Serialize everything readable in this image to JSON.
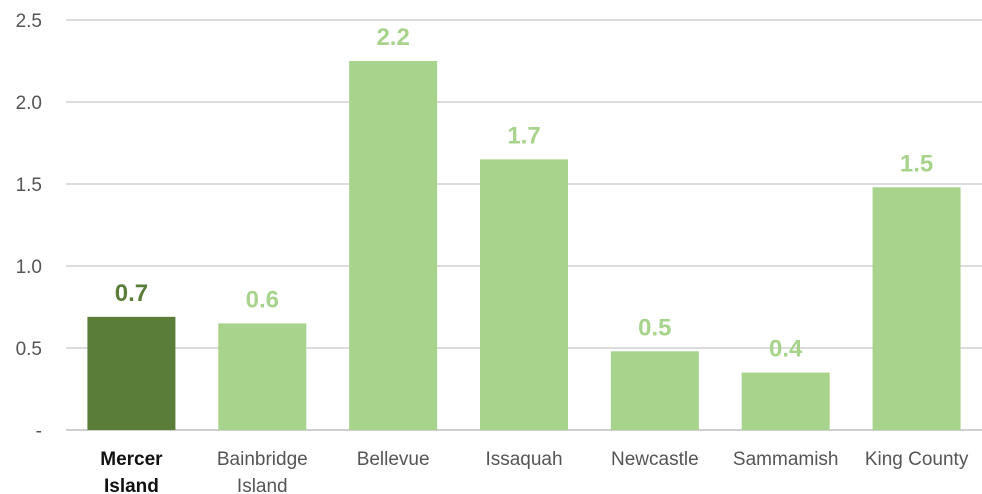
{
  "chart_data": {
    "type": "bar",
    "title": "",
    "xlabel": "",
    "ylabel": "",
    "ylim": [
      0,
      2.5
    ],
    "yticks": [
      0,
      0.5,
      1.0,
      1.5,
      2.0,
      2.5
    ],
    "ytick_labels": [
      "-",
      "0.5",
      "1.0",
      "1.5",
      "2.0",
      "2.5"
    ],
    "grid": true,
    "legend": "none",
    "categories": [
      [
        "Mercer",
        "Island"
      ],
      [
        "Bainbridge",
        "Island"
      ],
      [
        "Bellevue"
      ],
      [
        "Issaquah"
      ],
      [
        "Newcastle"
      ],
      [
        "Sammamish"
      ],
      [
        "King County"
      ]
    ],
    "values": [
      0.69,
      0.65,
      2.25,
      1.65,
      0.48,
      0.35,
      1.48
    ],
    "data_labels": [
      "0.7",
      "0.6",
      "2.2",
      "1.7",
      "0.5",
      "0.4",
      "1.5"
    ],
    "highlight_index": 0,
    "colors": {
      "highlight_bar": "#5a7e3a",
      "bar": "#a8d38c",
      "highlight_label": "#5a7e3a",
      "label": "#a8d38c",
      "grid": "#d0d0d0",
      "axis": "#bfbfbf"
    }
  }
}
